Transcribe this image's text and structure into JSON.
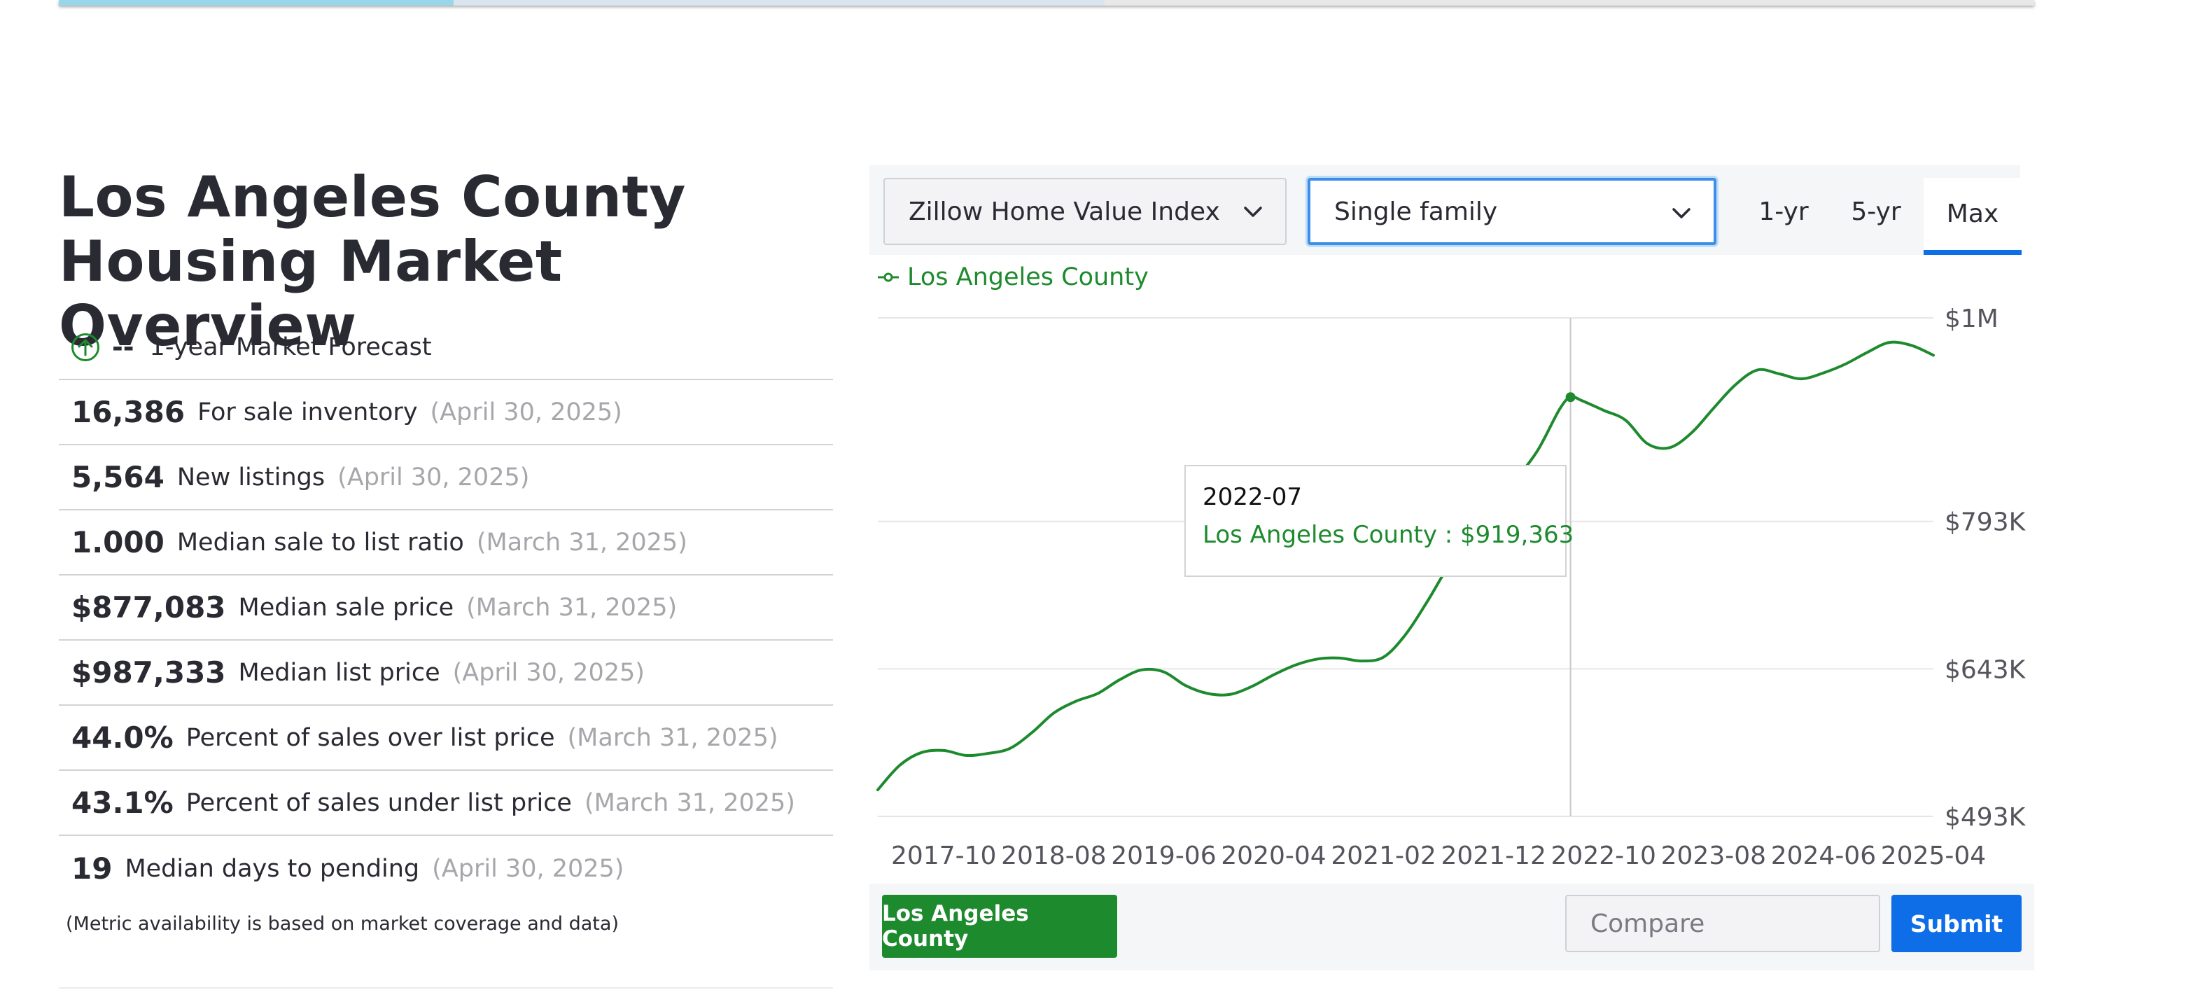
{
  "page": {
    "title": "Los Angeles County Housing Market Overview",
    "footnote": "(Metric availability is based on market coverage and data)"
  },
  "forecast": {
    "value": "--",
    "label": "1-year Market Forecast",
    "icon": "arrow-up-circle-icon"
  },
  "metrics": [
    {
      "value": "16,386",
      "label": "For sale inventory",
      "date": "(April 30, 2025)"
    },
    {
      "value": "5,564",
      "label": "New listings",
      "date": "(April 30, 2025)"
    },
    {
      "value": "1.000",
      "label": "Median sale to list ratio",
      "date": "(March 31, 2025)"
    },
    {
      "value": "$877,083",
      "label": "Median sale price",
      "date": "(March 31, 2025)"
    },
    {
      "value": "$987,333",
      "label": "Median list price",
      "date": "(April 30, 2025)"
    },
    {
      "value": "44.0%",
      "label": "Percent of sales over list price",
      "date": "(March 31, 2025)"
    },
    {
      "value": "43.1%",
      "label": "Percent of sales under list price",
      "date": "(March 31, 2025)"
    },
    {
      "value": "19",
      "label": "Median days to pending",
      "date": "(April 30, 2025)"
    }
  ],
  "controls": {
    "metric_select": "Zillow Home Value Index",
    "type_select": "Single family",
    "ranges": [
      "1-yr",
      "5-yr",
      "Max"
    ],
    "active_range": "Max"
  },
  "legend": {
    "label": "Los Angeles County"
  },
  "tooltip": {
    "date": "2022-07",
    "text": "Los Angeles County : $919,363"
  },
  "bottom": {
    "region_button": "Los Angeles County",
    "compare_placeholder": "Compare",
    "submit_label": "Submit"
  },
  "colors": {
    "series": "#1e8a2e",
    "accent": "#0d6ee8",
    "focus_border": "#3b8fe8"
  },
  "chart_data": {
    "type": "line",
    "series": [
      {
        "name": "Los Angeles County",
        "points": [
          [
            "2017-04",
            520000
          ],
          [
            "2017-06",
            545000
          ],
          [
            "2017-08",
            558000
          ],
          [
            "2017-10",
            560000
          ],
          [
            "2017-12",
            555000
          ],
          [
            "2018-02",
            557000
          ],
          [
            "2018-04",
            562000
          ],
          [
            "2018-06",
            578000
          ],
          [
            "2018-08",
            598000
          ],
          [
            "2018-10",
            610000
          ],
          [
            "2018-12",
            618000
          ],
          [
            "2019-02",
            632000
          ],
          [
            "2019-04",
            642000
          ],
          [
            "2019-06",
            640000
          ],
          [
            "2019-08",
            626000
          ],
          [
            "2019-10",
            618000
          ],
          [
            "2019-12",
            617000
          ],
          [
            "2020-02",
            625000
          ],
          [
            "2020-04",
            637000
          ],
          [
            "2020-06",
            647000
          ],
          [
            "2020-08",
            653000
          ],
          [
            "2020-10",
            654000
          ],
          [
            "2020-12",
            651000
          ],
          [
            "2021-02",
            655000
          ],
          [
            "2021-04",
            678000
          ],
          [
            "2021-06",
            712000
          ],
          [
            "2021-08",
            749000
          ],
          [
            "2021-10",
            775000
          ],
          [
            "2021-12",
            805000
          ],
          [
            "2022-02",
            835000
          ],
          [
            "2022-04",
            865000
          ],
          [
            "2022-06",
            907000
          ],
          [
            "2022-07",
            919363
          ],
          [
            "2022-08",
            916000
          ],
          [
            "2022-10",
            906000
          ],
          [
            "2022-12",
            896000
          ],
          [
            "2023-02",
            872000
          ],
          [
            "2023-04",
            868000
          ],
          [
            "2023-06",
            883000
          ],
          [
            "2023-08",
            908000
          ],
          [
            "2023-10",
            932000
          ],
          [
            "2023-12",
            947000
          ],
          [
            "2024-02",
            943000
          ],
          [
            "2024-04",
            938000
          ],
          [
            "2024-06",
            944000
          ],
          [
            "2024-08",
            953000
          ],
          [
            "2024-10",
            965000
          ],
          [
            "2024-12",
            975000
          ],
          [
            "2025-02",
            972000
          ],
          [
            "2025-04",
            962000
          ]
        ]
      }
    ],
    "x_ticks": [
      "2017-10",
      "2018-08",
      "2019-06",
      "2020-04",
      "2021-02",
      "2021-12",
      "2022-10",
      "2023-08",
      "2024-06",
      "2025-04"
    ],
    "y_ticks": [
      {
        "value": 493000,
        "label": "$493K"
      },
      {
        "value": 643000,
        "label": "$643K"
      },
      {
        "value": 793000,
        "label": "$793K"
      },
      {
        "value": 1000000,
        "label": "$1M"
      }
    ],
    "xlim": [
      "2017-04",
      "2025-04"
    ],
    "ylim": [
      493000,
      1000000
    ],
    "highlight": "2022-07",
    "grid": true,
    "legend_position": "top-left"
  }
}
